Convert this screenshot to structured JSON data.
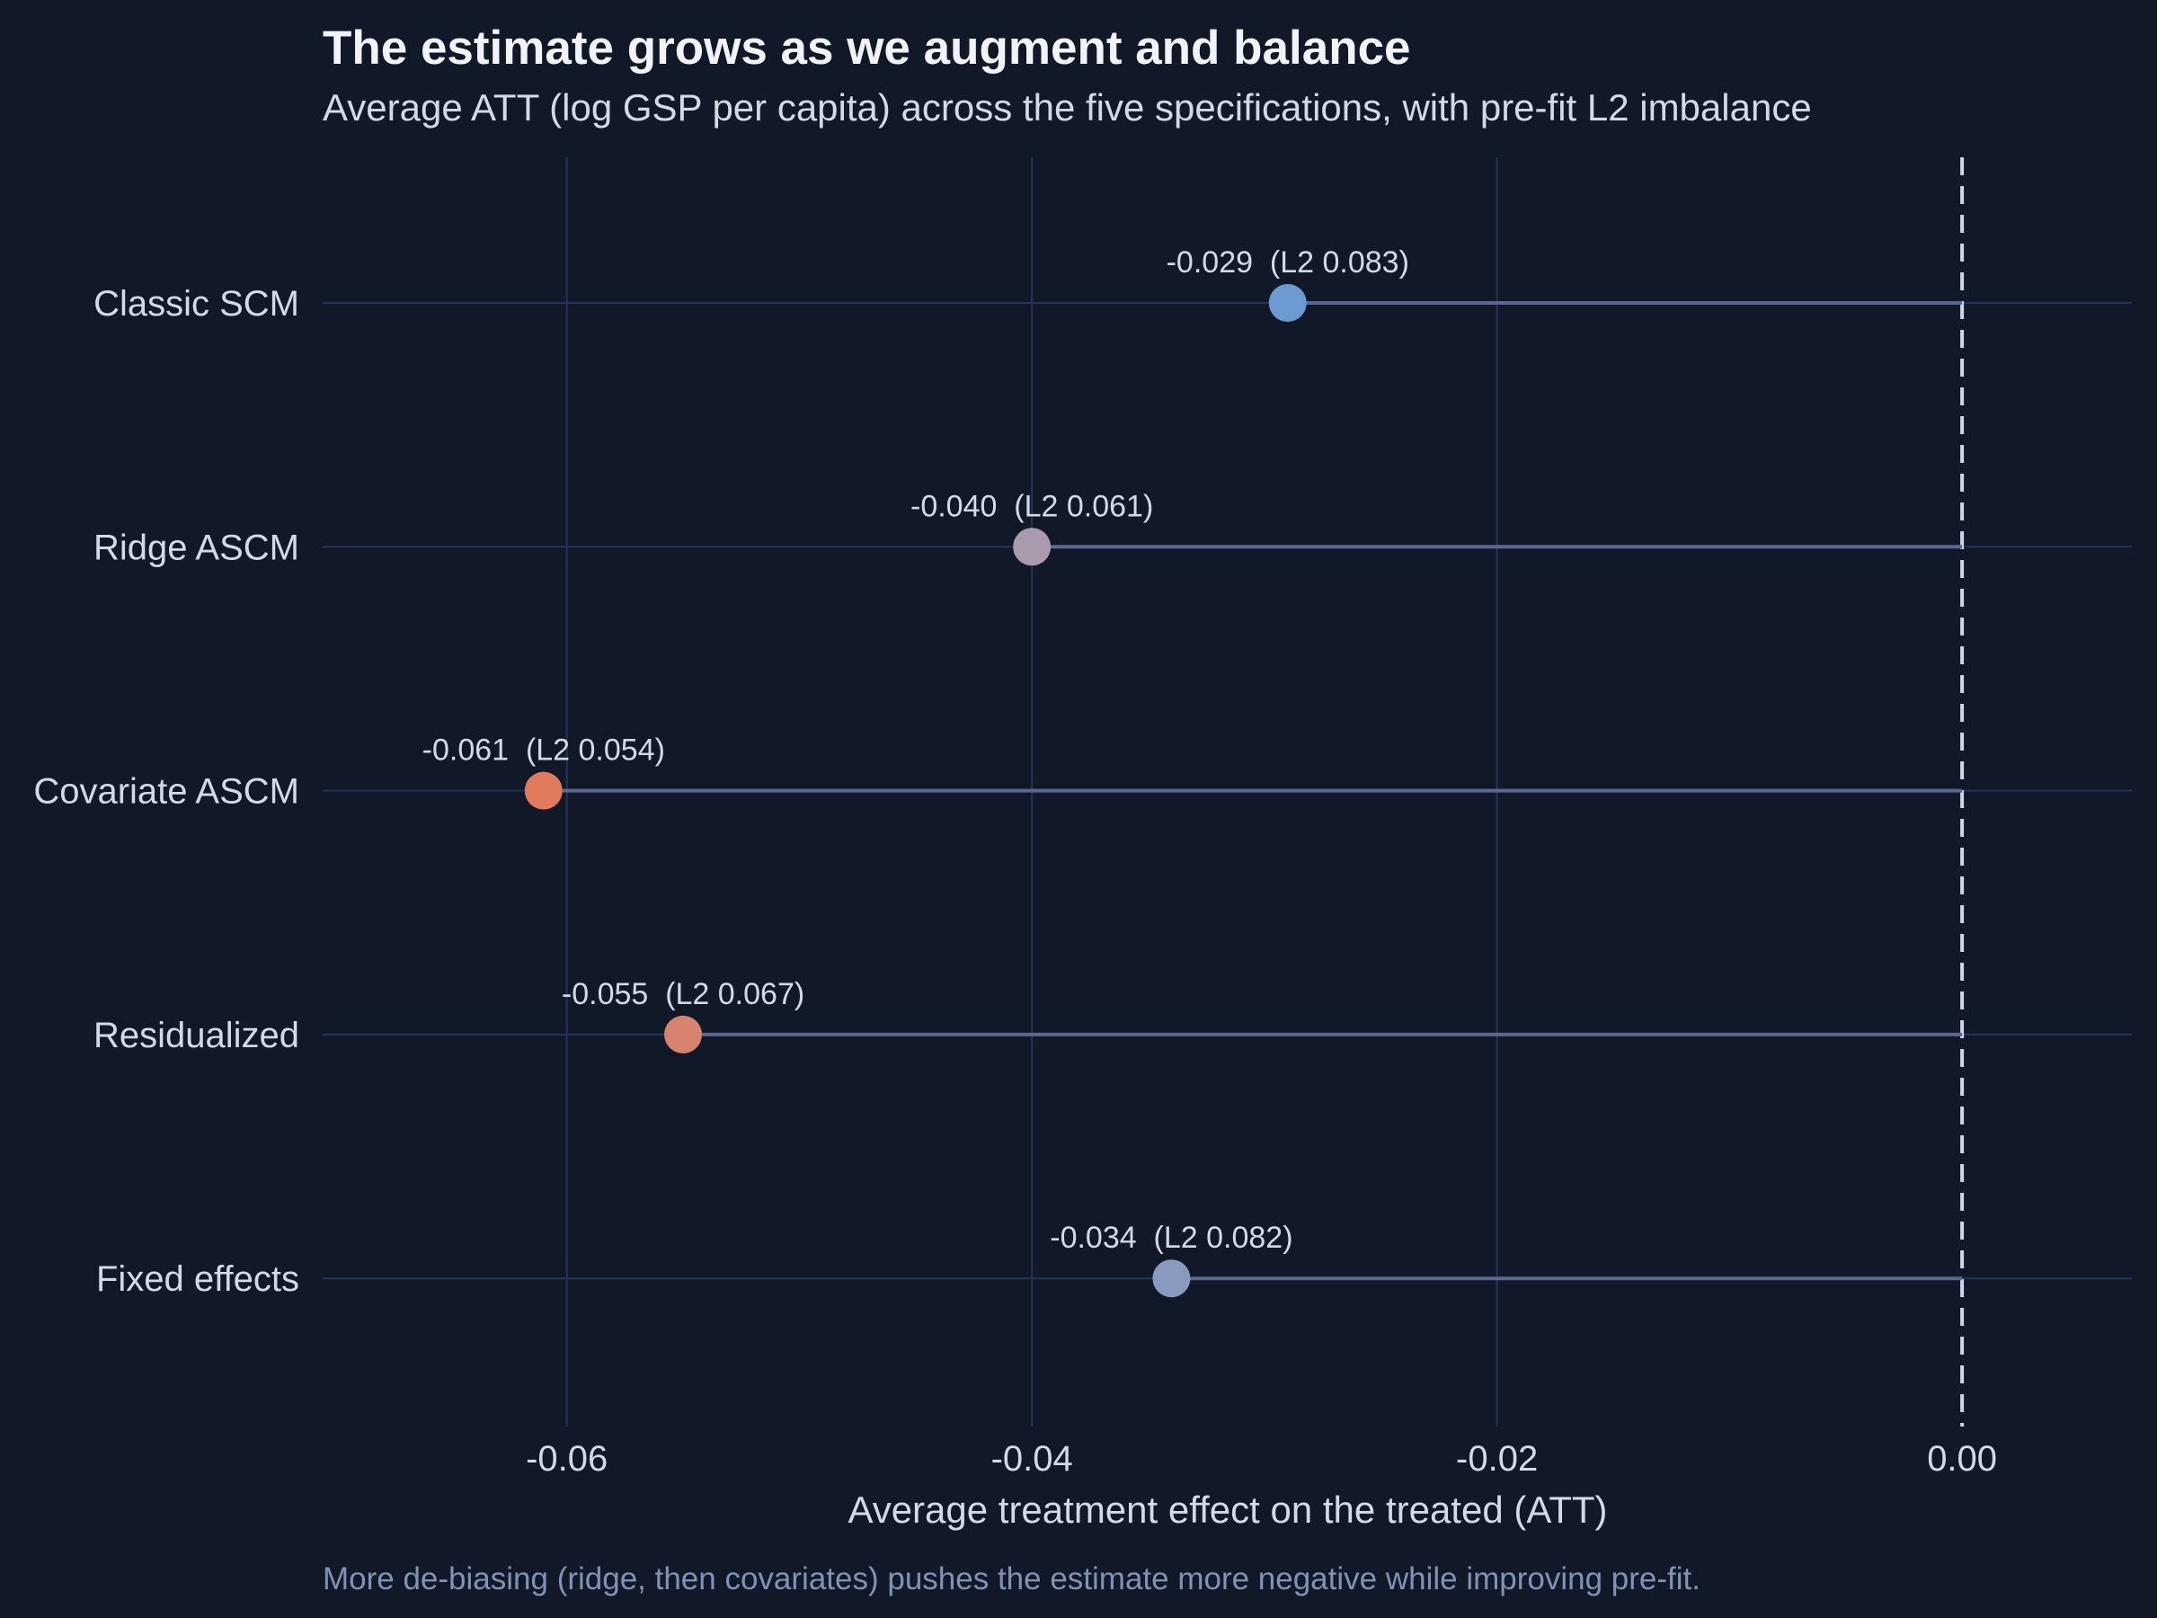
{
  "colors": {
    "background": "#111828",
    "grid": "#24335a",
    "stem": "#5a6790",
    "zero_line": "#cfd5e6",
    "title": "#f1f3f8",
    "text": "#d4d9e6",
    "caption": "#8292b5"
  },
  "chart_data": {
    "type": "scatter",
    "style": "lollipop",
    "title": "The estimate grows as we augment and balance",
    "subtitle": "Average ATT (log GSP per capita) across the five specifications, with pre-fit L2 imbalance",
    "xlabel": "Average treatment effect on the treated (ATT)",
    "ylabel": "",
    "caption": "More de-biasing (ridge, then covariates) pushes the estimate more negative while improving pre-fit.",
    "xlim": [
      -0.0705,
      0.0073
    ],
    "x_ticks": [
      -0.06,
      -0.04,
      -0.02,
      0.0
    ],
    "x_tick_labels": [
      "-0.06",
      "-0.04",
      "-0.02",
      "0.00"
    ],
    "reference_line": {
      "x": 0.0,
      "style": "dashed"
    },
    "grid": true,
    "legend": "none",
    "categories": [
      "Classic SCM",
      "Ridge ASCM",
      "Covariate ASCM",
      "Residualized",
      "Fixed effects"
    ],
    "values": [
      -0.029,
      -0.04,
      -0.061,
      -0.055,
      -0.034
    ],
    "l2_imbalance": [
      0.083,
      0.061,
      0.054,
      0.067,
      0.082
    ],
    "point_labels": [
      "-0.029  (L2 0.083)",
      "-0.040  (L2 0.061)",
      "-0.061  (L2 0.054)",
      "-0.055  (L2 0.067)",
      "-0.034  (L2 0.082)"
    ],
    "point_colors": [
      "#6d9bd1",
      "#a99aae",
      "#df7a5c",
      "#d8836f",
      "#8a9abf"
    ]
  }
}
